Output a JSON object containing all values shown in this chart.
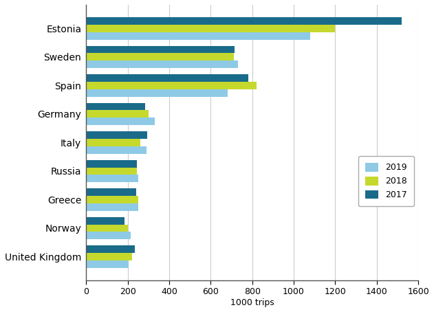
{
  "categories": [
    "Estonia",
    "Sweden",
    "Spain",
    "Germany",
    "Italy",
    "Russia",
    "Greece",
    "Norway",
    "United Kingdom"
  ],
  "series": {
    "2019": [
      1080,
      730,
      680,
      330,
      290,
      250,
      250,
      215,
      205
    ],
    "2018": [
      1200,
      710,
      820,
      300,
      260,
      245,
      250,
      200,
      220
    ],
    "2017": [
      1520,
      715,
      780,
      285,
      295,
      245,
      240,
      185,
      235
    ]
  },
  "colors": {
    "2019": "#8ecae6",
    "2018": "#c5d92d",
    "2017": "#1a6b8a"
  },
  "xlim": [
    0,
    1600
  ],
  "xticks": [
    0,
    200,
    400,
    600,
    800,
    1000,
    1200,
    1400,
    1600
  ],
  "xlabel": "1000 trips",
  "legend_labels": [
    "2019",
    "2018",
    "2017"
  ],
  "bar_height": 0.26,
  "background_color": "#ffffff",
  "grid_color": "#cccccc"
}
